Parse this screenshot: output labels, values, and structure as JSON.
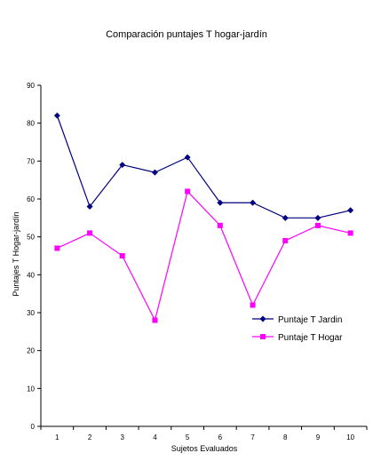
{
  "chart_data": {
    "type": "line",
    "title": "Comparación puntajes T hogar-jardín",
    "xlabel": "Sujetos Evaluados",
    "ylabel": "Puntajes T Hogar-jardín",
    "categories": [
      "1",
      "2",
      "3",
      "4",
      "5",
      "6",
      "7",
      "8",
      "9",
      "10"
    ],
    "ylim": [
      0,
      90
    ],
    "yticks": [
      0,
      10,
      20,
      30,
      40,
      50,
      60,
      70,
      80,
      90
    ],
    "grid": false,
    "legend_position": "right",
    "series": [
      {
        "name": "Puntaje T Jardin",
        "color": "#000080",
        "marker": "diamond",
        "values": [
          82,
          58,
          69,
          67,
          71,
          59,
          59,
          55,
          55,
          57
        ]
      },
      {
        "name": "Puntaje T Hogar",
        "color": "#ff00ff",
        "marker": "square",
        "values": [
          47,
          51,
          45,
          28,
          62,
          53,
          32,
          49,
          53,
          51
        ]
      }
    ]
  }
}
